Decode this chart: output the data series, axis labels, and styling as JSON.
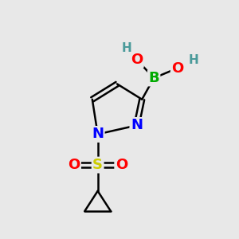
{
  "background_color": "#e8e8e8",
  "bond_color": "#000000",
  "atom_colors": {
    "B": "#00aa00",
    "O": "#ff0000",
    "H": "#4a9a9a",
    "N": "#0000ff",
    "S": "#cccc00",
    "C": "#000000"
  },
  "bond_width": 1.8,
  "font_size_atoms": 13,
  "font_size_H": 11
}
